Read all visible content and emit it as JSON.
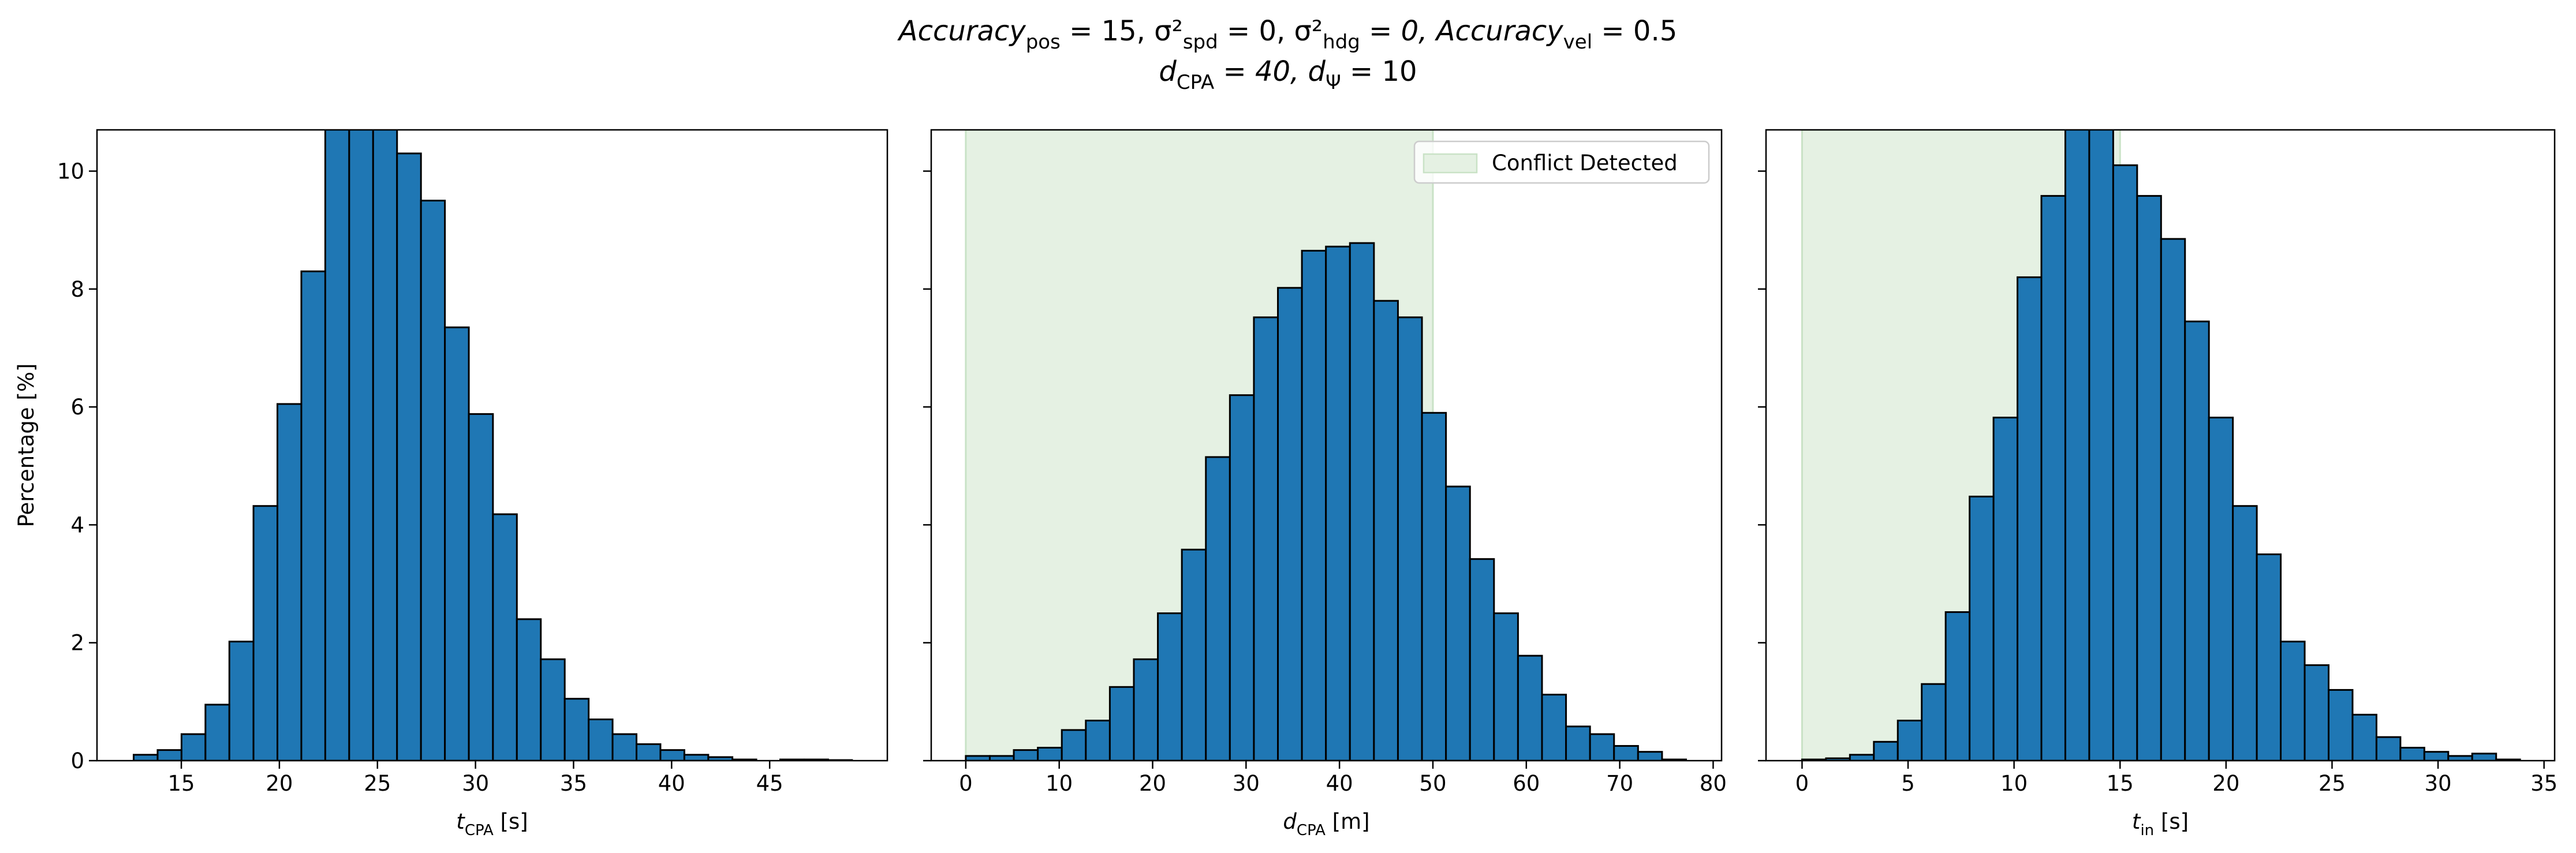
{
  "title": [
    [
      "Accuracy",
      "pos",
      " = 15, σ²",
      "spd",
      " = 0, σ²",
      "hdg",
      " = 0, Accuracy",
      "vel",
      " = 0.5"
    ],
    [
      "d",
      "CPA",
      " = 40, d",
      "Ψ",
      " = 10"
    ]
  ],
  "chart_data": [
    {
      "type": "histogram",
      "color": "#1f77b4",
      "edgecolor": "#000000",
      "bins": [
        12.57,
        13.79,
        15.01,
        16.23,
        17.45,
        18.68,
        19.9,
        21.12,
        22.34,
        23.56,
        24.78,
        26.0,
        27.22,
        28.44,
        29.66,
        30.89,
        32.11,
        33.33,
        34.55,
        35.77,
        36.99,
        38.21,
        39.43,
        40.65,
        41.87,
        43.1,
        44.32,
        45.54,
        46.76,
        47.98,
        49.2
      ],
      "values": [
        0.1,
        0.18,
        0.45,
        0.95,
        2.02,
        4.32,
        6.05,
        8.3,
        11.3,
        11.6,
        11.2,
        10.3,
        9.5,
        7.35,
        5.88,
        4.18,
        2.4,
        1.72,
        1.05,
        0.7,
        0.45,
        0.28,
        0.18,
        0.1,
        0.06,
        0.02,
        0.0,
        0.02,
        0.02,
        0.01
      ],
      "xlim": [
        10.7,
        51.0
      ],
      "xticks": [
        15,
        20,
        25,
        30,
        35,
        40,
        45
      ],
      "ylim": [
        0,
        10.7
      ],
      "yticks": [
        0,
        2,
        4,
        6,
        8,
        10
      ],
      "xlabel": [
        "t",
        "CPA",
        " [s]"
      ],
      "ylabel": "Percentage [%]"
    },
    {
      "type": "histogram",
      "color": "#1f77b4",
      "edgecolor": "#000000",
      "bins": [
        0,
        2.57,
        5.14,
        7.71,
        10.28,
        12.85,
        15.42,
        17.99,
        20.56,
        23.13,
        25.7,
        28.27,
        30.84,
        33.41,
        35.98,
        38.55,
        41.12,
        43.69,
        46.26,
        48.83,
        51.4,
        53.97,
        56.54,
        59.11,
        61.68,
        64.25,
        66.82,
        69.39,
        71.96,
        74.53,
        77.1
      ],
      "values": [
        0.08,
        0.08,
        0.18,
        0.22,
        0.52,
        0.68,
        1.25,
        1.72,
        2.5,
        3.58,
        5.15,
        6.2,
        7.52,
        8.02,
        8.65,
        8.72,
        8.78,
        7.8,
        7.52,
        5.9,
        4.65,
        3.42,
        2.5,
        1.78,
        1.12,
        0.58,
        0.45,
        0.25,
        0.15,
        0.02
      ],
      "xlim": [
        -3.7,
        80.9
      ],
      "xticks": [
        0,
        10,
        20,
        30,
        40,
        50,
        60,
        70,
        80
      ],
      "ylim": [
        0,
        10.7
      ],
      "yticks": [
        0,
        2,
        4,
        6,
        8,
        10
      ],
      "xlabel": [
        "d",
        "CPA",
        " [m]"
      ],
      "span": [
        0,
        50
      ],
      "span_color": "#e5f1e3",
      "span_label": "Conflict Detected",
      "legend": "upper right"
    },
    {
      "type": "histogram",
      "color": "#1f77b4",
      "edgecolor": "#000000",
      "bins": [
        0,
        1.129,
        2.258,
        3.387,
        4.516,
        5.645,
        6.774,
        7.903,
        9.032,
        10.161,
        11.29,
        12.419,
        13.548,
        14.677,
        15.806,
        16.935,
        18.064,
        19.193,
        20.322,
        21.451,
        22.58,
        23.709,
        24.838,
        25.967,
        27.096,
        28.225,
        29.354,
        30.483,
        31.612,
        32.741,
        33.87
      ],
      "values": [
        0.02,
        0.04,
        0.1,
        0.32,
        0.68,
        1.3,
        2.52,
        4.48,
        5.82,
        8.2,
        9.58,
        11.0,
        10.9,
        10.1,
        9.58,
        8.85,
        7.45,
        5.82,
        4.32,
        3.5,
        2.02,
        1.62,
        1.2,
        0.78,
        0.4,
        0.22,
        0.15,
        0.08,
        0.12,
        0.02
      ],
      "xlim": [
        -1.7,
        35.5
      ],
      "xticks": [
        0,
        5,
        10,
        15,
        20,
        25,
        30,
        35
      ],
      "ylim": [
        0,
        10.7
      ],
      "yticks": [
        0,
        2,
        4,
        6,
        8,
        10
      ],
      "xlabel": [
        "t",
        "in",
        " [s]"
      ],
      "span": [
        0,
        15
      ],
      "span_color": "#e5f1e3"
    }
  ]
}
